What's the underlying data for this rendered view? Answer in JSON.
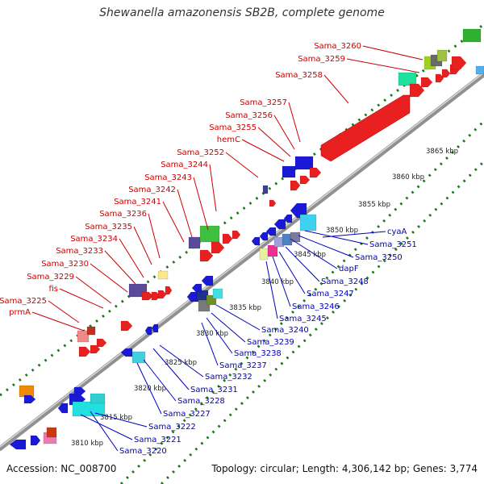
{
  "title": "Shewanella amazonensis SB2B, complete genome",
  "footer": {
    "accession": "Accession: NC_008700",
    "summary": "Topology: circular; Length: 4,306,142 bp; Genes: 3,774"
  },
  "colors": {
    "forward_label": "#cc0000",
    "reverse_label": "#0000bb",
    "forward_gene": "#e8201f",
    "reverse_gene": "#1a1ad6",
    "dots": "#1a7a1a",
    "backbone": "#909090"
  },
  "ticks": [
    "3810 kbp",
    "3815 kbp",
    "3820 kbp",
    "3825 kbp",
    "3830 kbp",
    "3835 kbp",
    "3840 kbp",
    "3845 kbp",
    "3850 kbp",
    "3855 kbp",
    "3860 kbp",
    "3865 kbp"
  ],
  "forward_labels": [
    "prmA",
    "Sama_3225",
    "fis",
    "Sama_3229",
    "Sama_3230",
    "Sama_3233",
    "Sama_3234",
    "Sama_3235",
    "Sama_3236",
    "Sama_3241",
    "Sama_3242",
    "Sama_3243",
    "Sama_3244",
    "Sama_3252",
    "hemC",
    "Sama_3255",
    "Sama_3256",
    "Sama_3257",
    "Sama_3258",
    "Sama_3259",
    "Sama_3260"
  ],
  "reverse_labels": [
    "Sama_3220",
    "Sama_3221",
    "Sama_3222",
    "Sama_3227",
    "Sama_3228",
    "Sama_3231",
    "Sama_3232",
    "Sama_3237",
    "Sama_3238",
    "Sama_3239",
    "Sama_3240",
    "Sama_3245",
    "Sama_3246",
    "Sama_3247",
    "Sama_3248",
    "dapF",
    "Sama_3250",
    "Sama_3251",
    "cyaA"
  ]
}
